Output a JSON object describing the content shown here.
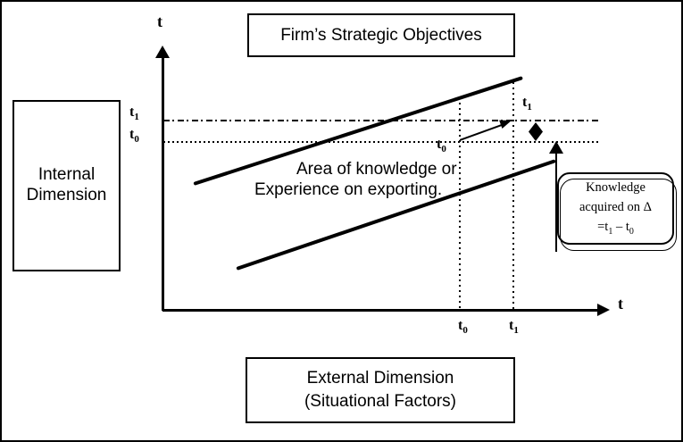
{
  "colors": {
    "ink": "#000000",
    "paper": "#ffffff"
  },
  "boxes": {
    "strategic": {
      "label": "Firm’s Strategic Objectives"
    },
    "internal": {
      "line1": "Internal",
      "line2": "Dimension"
    },
    "external": {
      "line1": "External Dimension",
      "line2": "(Situational Factors)"
    },
    "knowledge": {
      "line1": "Knowledge",
      "line2": "acquired on Δ",
      "eq_pre": "=t",
      "eq_sub1": "1",
      "eq_mid": " – t",
      "eq_sub0": "0"
    }
  },
  "axes": {
    "y_title": "t",
    "x_title": "t"
  },
  "ticks": {
    "t": "t",
    "sub0": "0",
    "sub1": "1"
  },
  "area_label": {
    "line1": "Area of knowledge or",
    "line2": "Experience on exporting."
  }
}
